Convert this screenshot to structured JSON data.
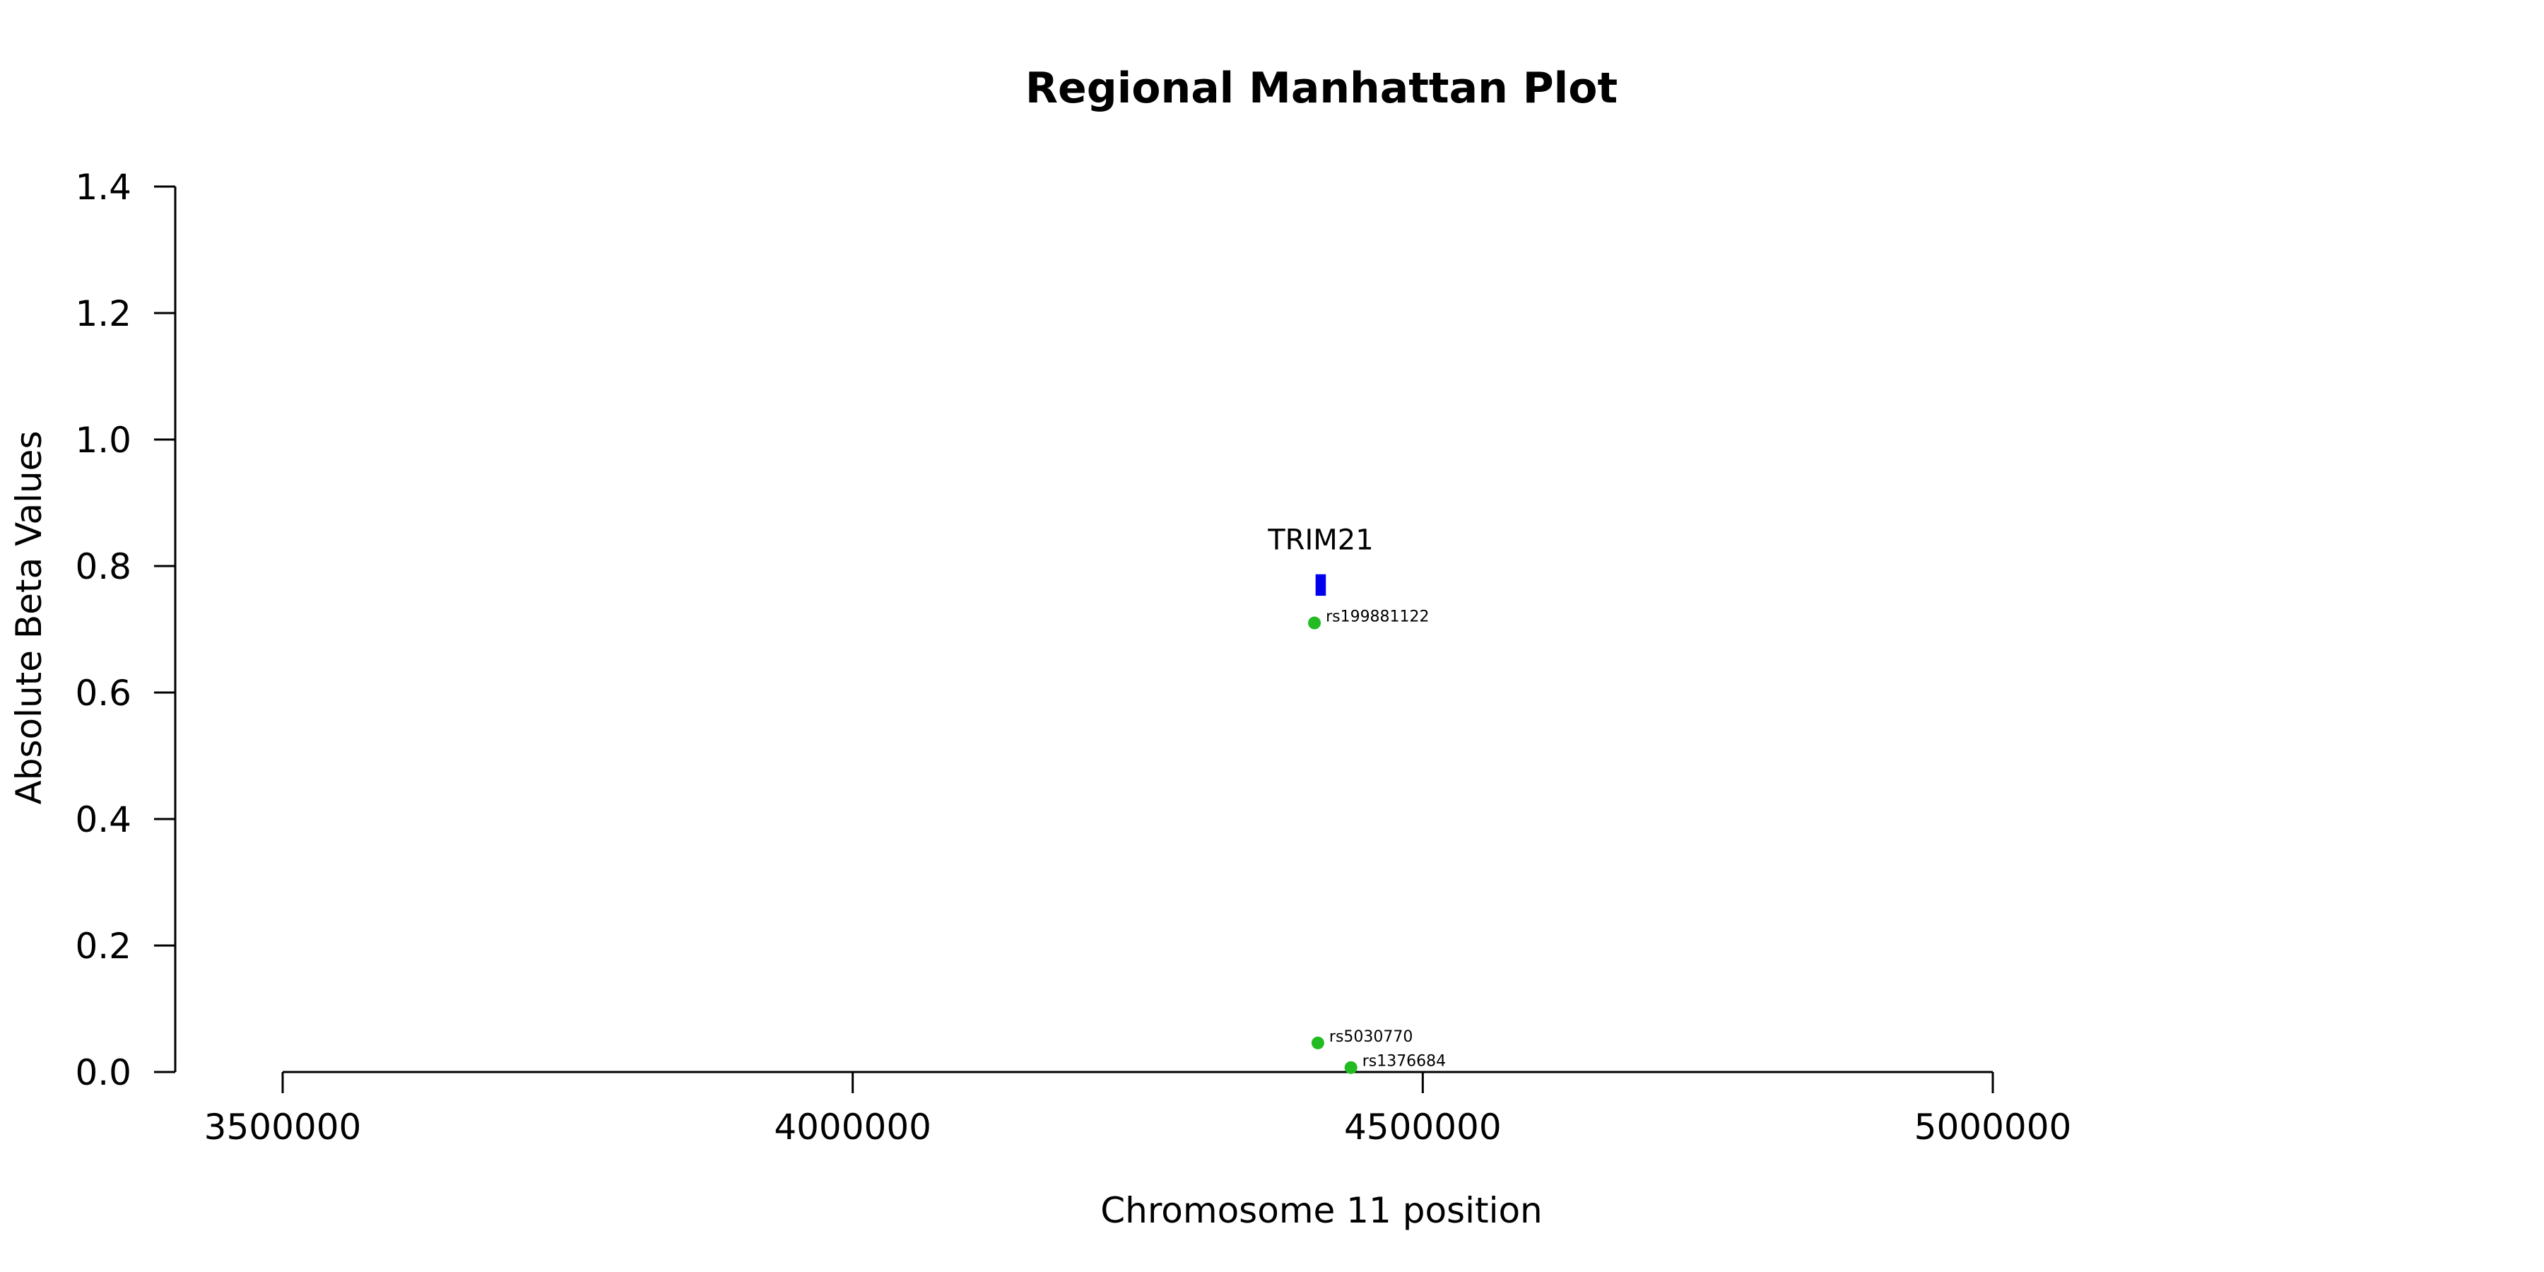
{
  "chart_data": {
    "type": "scatter",
    "title": "Regional Manhattan Plot",
    "xlabel": "Chromosome 11 position",
    "ylabel": "Absolute Beta Values",
    "xlim": [
      3500000,
      5000000
    ],
    "ylim": [
      0,
      1.4
    ],
    "x_ticks": [
      3500000,
      4000000,
      4500000,
      5000000
    ],
    "x_tick_labels": [
      "3500000",
      "4000000",
      "4500000",
      "5000000"
    ],
    "y_ticks": [
      0,
      0.2,
      0.4,
      0.6,
      0.8,
      1.0,
      1.2,
      1.4
    ],
    "y_tick_labels": [
      "0.0",
      "0.2",
      "0.4",
      "0.6",
      "0.8",
      "1.0",
      "1.2",
      "1.4"
    ],
    "grid": false,
    "point_color": "#22bb22",
    "gene_color": "#0000ee",
    "points": [
      {
        "label": "rs199881122",
        "x": 4405000,
        "y": 0.71
      },
      {
        "label": "rs5030770",
        "x": 4408000,
        "y": 0.046
      },
      {
        "label": "rs1376684",
        "x": 4437000,
        "y": 0.007
      }
    ],
    "genes": [
      {
        "name": "TRIM21",
        "start": 4406000,
        "end": 4415000,
        "y_low": 0.753,
        "y_high": 0.787
      }
    ]
  }
}
